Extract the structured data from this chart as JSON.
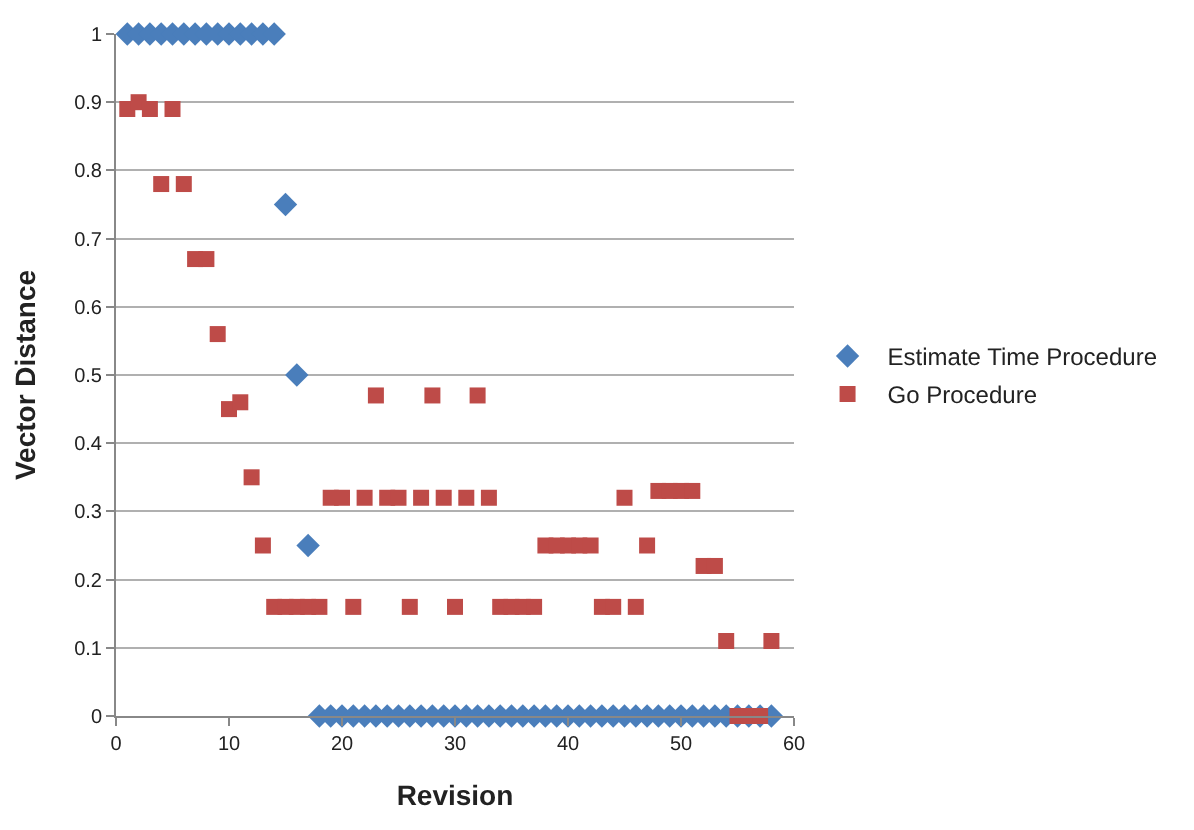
{
  "chart_data": {
    "type": "scatter",
    "xlabel": "Revision",
    "ylabel": "Vector Distance",
    "xlim": [
      0,
      60
    ],
    "xticks": [
      0,
      10,
      20,
      30,
      40,
      50,
      60
    ],
    "ylim": [
      0,
      1
    ],
    "yticks": [
      0,
      0.1,
      0.2,
      0.3,
      0.4,
      0.5,
      0.6,
      0.7,
      0.8,
      0.9,
      1
    ],
    "grid": "y",
    "legend": "right",
    "series": [
      {
        "name": "Estimate Time Procedure",
        "color": "#4a7ebb",
        "marker": "diamond",
        "x": [
          1,
          2,
          3,
          4,
          5,
          6,
          7,
          8,
          9,
          10,
          11,
          12,
          13,
          14,
          15,
          16,
          17,
          18,
          19,
          20,
          21,
          22,
          23,
          24,
          25,
          26,
          27,
          28,
          29,
          30,
          31,
          32,
          33,
          34,
          35,
          36,
          37,
          38,
          39,
          40,
          41,
          42,
          43,
          44,
          45,
          46,
          47,
          48,
          49,
          50,
          51,
          52,
          53,
          54,
          55,
          56,
          57,
          58
        ],
        "values": [
          1,
          1,
          1,
          1,
          1,
          1,
          1,
          1,
          1,
          1,
          1,
          1,
          1,
          1,
          0.75,
          0.5,
          0.25,
          0,
          0,
          0,
          0,
          0,
          0,
          0,
          0,
          0,
          0,
          0,
          0,
          0,
          0,
          0,
          0,
          0,
          0,
          0,
          0,
          0,
          0,
          0,
          0,
          0,
          0,
          0,
          0,
          0,
          0,
          0,
          0,
          0,
          0,
          0,
          0,
          0,
          0,
          0,
          0,
          0
        ]
      },
      {
        "name": "Go Procedure",
        "color": "#be4b48",
        "marker": "square",
        "x": [
          1,
          2,
          3,
          4,
          5,
          6,
          7,
          8,
          9,
          10,
          11,
          12,
          13,
          14,
          15,
          16,
          17,
          18,
          19,
          20,
          21,
          22,
          23,
          24,
          25,
          26,
          27,
          28,
          29,
          30,
          31,
          32,
          33,
          34,
          35,
          36,
          37,
          38,
          39,
          40,
          41,
          42,
          43,
          44,
          45,
          46,
          47,
          48,
          49,
          50,
          51,
          52,
          53,
          54,
          55,
          56,
          57,
          58
        ],
        "values": [
          0.89,
          0.9,
          0.89,
          0.78,
          0.89,
          0.78,
          0.67,
          0.67,
          0.56,
          0.45,
          0.46,
          0.35,
          0.25,
          0.16,
          0.16,
          0.16,
          0.16,
          0.16,
          0.32,
          0.32,
          0.16,
          0.32,
          0.47,
          0.32,
          0.32,
          0.16,
          0.32,
          0.47,
          0.32,
          0.16,
          0.32,
          0.47,
          0.32,
          0.16,
          0.16,
          0.16,
          0.16,
          0.25,
          0.25,
          0.25,
          0.25,
          0.25,
          0.16,
          0.16,
          0.32,
          0.16,
          0.25,
          0.33,
          0.33,
          0.33,
          0.33,
          0.22,
          0.22,
          0.11,
          0,
          0,
          0,
          0.11
        ]
      }
    ]
  }
}
